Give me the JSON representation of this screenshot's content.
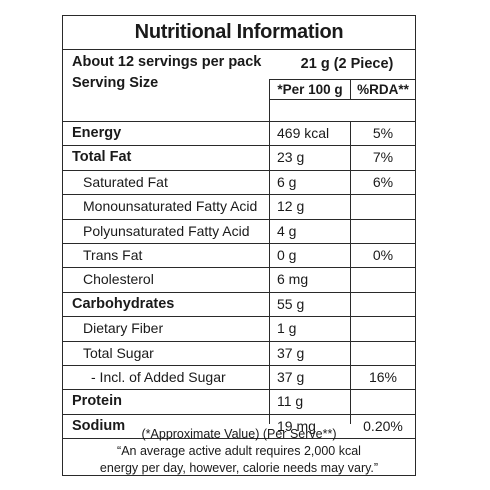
{
  "title": "Nutritional Information",
  "serving": {
    "servings_per_pack": "About 12 servings per pack",
    "serving_size_label": "Serving Size",
    "serving_size_value": "21 g (2 Piece)"
  },
  "columns": {
    "per100": "*Per 100 g",
    "rda": "%RDA**"
  },
  "rows": [
    {
      "name": "Energy",
      "value": "469 kcal",
      "rda": "5%"
    },
    {
      "name": "Total Fat",
      "value": "23 g",
      "rda": "7%"
    },
    {
      "name": "Saturated Fat",
      "value": "6 g",
      "rda": "6%"
    },
    {
      "name": "Monounsaturated Fatty Acid",
      "value": "12 g",
      "rda": ""
    },
    {
      "name": "Polyunsaturated Fatty Acid",
      "value": "4 g",
      "rda": ""
    },
    {
      "name": "Trans Fat",
      "value": "0 g",
      "rda": "0%"
    },
    {
      "name": "Cholesterol",
      "value": "6 mg",
      "rda": ""
    },
    {
      "name": "Carbohydrates",
      "value": "55 g",
      "rda": ""
    },
    {
      "name": "Dietary Fiber",
      "value": "1 g",
      "rda": ""
    },
    {
      "name": "Total Sugar",
      "value": "37 g",
      "rda": ""
    },
    {
      "name": "- Incl. of Added Sugar",
      "value": "37 g",
      "rda": "16%"
    },
    {
      "name": "Protein",
      "value": "11 g",
      "rda": ""
    },
    {
      "name": "Sodium",
      "value": "19 mg",
      "rda": "0.20%"
    }
  ],
  "footnote": {
    "line1": "(*Approximate Value) (Per Serve**)",
    "line2": "“An average active adult requires 2,000 kcal",
    "line3": "energy per day, however, calorie needs may vary.”"
  }
}
